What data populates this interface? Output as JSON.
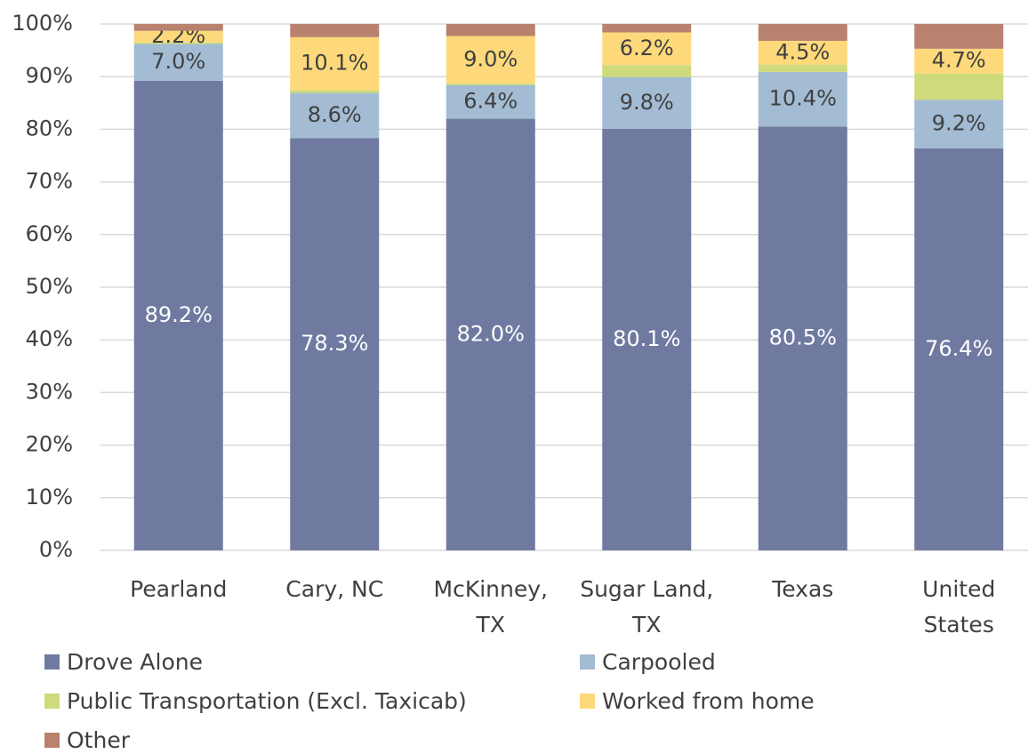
{
  "chart_data": {
    "type": "stacked_bar",
    "categories": [
      "Pearland",
      "Cary, NC",
      "McKinney, TX",
      "Sugar Land, TX",
      "Texas",
      "United States"
    ],
    "series": [
      {
        "name": "Drove Alone",
        "color": "#707aa1",
        "values": [
          89.2,
          78.3,
          82.0,
          80.1,
          80.5,
          76.4
        ],
        "value_labels": [
          "89.2%",
          "78.3%",
          "82.0%",
          "80.1%",
          "80.5%",
          "76.4%"
        ]
      },
      {
        "name": "Carpooled",
        "color": "#a3bcd4",
        "values": [
          7.0,
          8.6,
          6.4,
          9.8,
          10.4,
          9.2
        ],
        "value_labels": [
          "7.0%",
          "8.6%",
          "6.4%",
          "9.8%",
          "10.4%",
          "9.2%"
        ]
      },
      {
        "name": "Public Transportation (Excl. Taxicab)",
        "color": "#cfda7c",
        "values": [
          0.3,
          0.5,
          0.3,
          2.3,
          1.4,
          5.0
        ]
      },
      {
        "name": "Worked from home",
        "color": "#fdd97b",
        "values": [
          2.2,
          10.1,
          9.0,
          6.2,
          4.5,
          4.7
        ],
        "value_labels": [
          "2.2%",
          "10.1%",
          "9.0%",
          "6.2%",
          "4.5%",
          "4.7%"
        ]
      },
      {
        "name": "Other",
        "color": "#b9826f",
        "values": [
          1.3,
          2.5,
          2.3,
          1.6,
          3.2,
          4.7
        ]
      }
    ],
    "ylim": [
      0,
      100
    ],
    "yticks": [
      {
        "value": 0,
        "label": "0%"
      },
      {
        "value": 10,
        "label": "10%"
      },
      {
        "value": 20,
        "label": "20%"
      },
      {
        "value": 30,
        "label": "30%"
      },
      {
        "value": 40,
        "label": "40%"
      },
      {
        "value": 50,
        "label": "50%"
      },
      {
        "value": 60,
        "label": "60%"
      },
      {
        "value": 70,
        "label": "70%"
      },
      {
        "value": 80,
        "label": "80%"
      },
      {
        "value": 90,
        "label": "90%"
      },
      {
        "value": 100,
        "label": "100%"
      }
    ],
    "grid": true,
    "legend": "bottom"
  }
}
